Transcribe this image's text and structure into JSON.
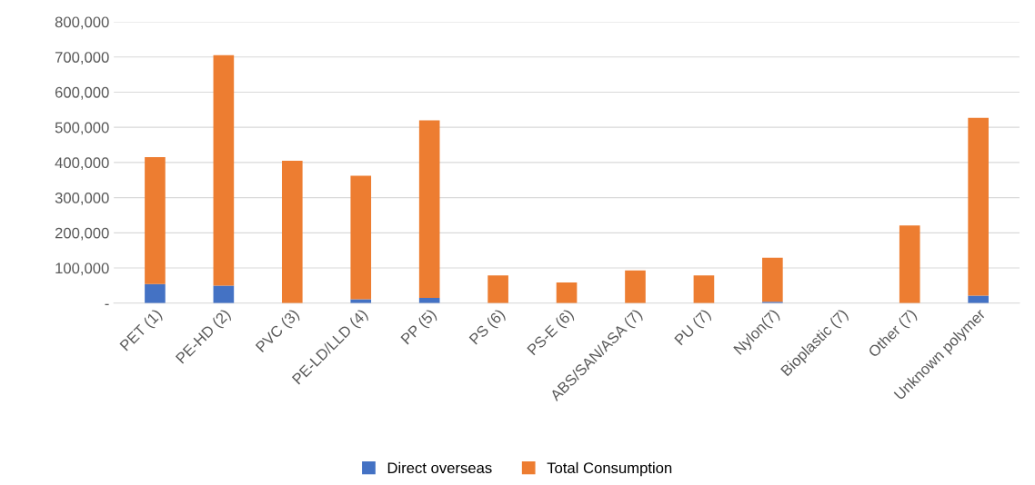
{
  "chart_data": {
    "type": "bar",
    "stacked": true,
    "categories": [
      "PET (1)",
      "PE-HD (2)",
      "PVC (3)",
      "PE-LD/LLD (4)",
      "PP (5)",
      "PS (6)",
      "PS-E (6)",
      "ABS/SAN/ASA (7)",
      "PU (7)",
      "Nylon(7)",
      "Bioplastic (7)",
      "Other (7)",
      "Unknown polymer"
    ],
    "series": [
      {
        "name": "Direct overseas",
        "color": "#4472c4",
        "values": [
          54000,
          50000,
          0,
          11000,
          15000,
          null,
          0,
          null,
          0,
          4000,
          0,
          0,
          21000
        ]
      },
      {
        "name": "Total Consumption",
        "color": "#ed7d31",
        "values": [
          361000,
          655000,
          405000,
          351000,
          505000,
          79000,
          59000,
          93000,
          79000,
          125000,
          0,
          221000,
          506000
        ]
      }
    ],
    "ylim": [
      0,
      800000
    ],
    "yticks": [
      {
        "value": 0,
        "label": "-"
      },
      {
        "value": 100000,
        "label": "100,000"
      },
      {
        "value": 200000,
        "label": "200,000"
      },
      {
        "value": 300000,
        "label": "300,000"
      },
      {
        "value": 400000,
        "label": "400,000"
      },
      {
        "value": 500000,
        "label": "500,000"
      },
      {
        "value": 600000,
        "label": "600,000"
      },
      {
        "value": 700000,
        "label": "700,000"
      },
      {
        "value": 800000,
        "label": "800,000"
      }
    ],
    "grid": "y",
    "legend": "bottom"
  }
}
